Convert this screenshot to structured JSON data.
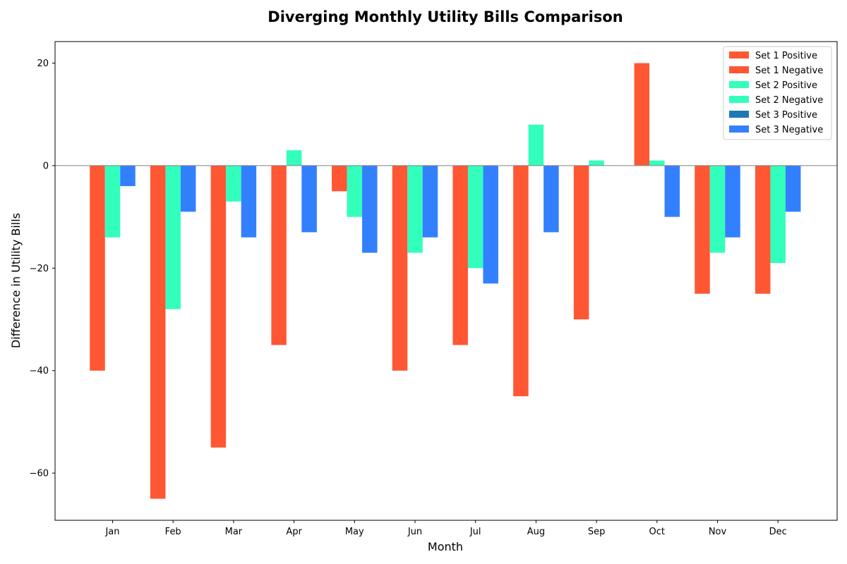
{
  "chart_data": {
    "type": "bar",
    "title": "Diverging Monthly Utility Bills Comparison",
    "xlabel": "Month",
    "ylabel": "Difference in Utility Bills",
    "categories": [
      "Jan",
      "Feb",
      "Mar",
      "Apr",
      "May",
      "Jun",
      "Jul",
      "Aug",
      "Sep",
      "Oct",
      "Nov",
      "Dec"
    ],
    "ylim": [
      -69.2,
      24.2
    ],
    "yticks": [
      20,
      0,
      -20,
      -40,
      -60
    ],
    "ytick_labels": [
      "20",
      "0",
      "−20",
      "−40",
      "−60"
    ],
    "zero_line": true,
    "grid": false,
    "legend_position": "top-right",
    "series": [
      {
        "name": "Set 1",
        "color": "#FF5733",
        "values": [
          -40,
          -65,
          -55,
          -35,
          -5,
          -40,
          -35,
          -45,
          -30,
          20,
          -25,
          -25
        ]
      },
      {
        "name": "Set 2",
        "color": "#33FFBD",
        "values": [
          -14,
          -28,
          -7,
          3,
          -10,
          -17,
          -20,
          8,
          1,
          1,
          -17,
          -19
        ]
      },
      {
        "name": "Set 3",
        "color": "#3380FF",
        "values": [
          -4,
          -9,
          -14,
          -13,
          -17,
          -14,
          -23,
          -13,
          0,
          -10,
          -14,
          -9
        ]
      }
    ],
    "legend": [
      {
        "label": "Set 1 Positive",
        "color": "#FF5733"
      },
      {
        "label": "Set 1 Negative",
        "color": "#FF5733"
      },
      {
        "label": "Set 2 Positive",
        "color": "#33FFBD"
      },
      {
        "label": "Set 2 Negative",
        "color": "#33FFBD"
      },
      {
        "label": "Set 3 Positive",
        "color": "#1F77B4"
      },
      {
        "label": "Set 3 Negative",
        "color": "#3380FF"
      }
    ]
  }
}
